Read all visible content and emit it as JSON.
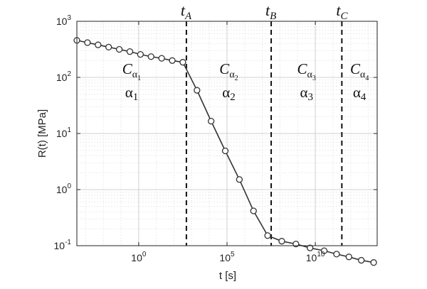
{
  "chart_data": {
    "type": "line",
    "xlabel": "t [s]",
    "ylabel": "R(t) [MPa]",
    "xscale": "log",
    "yscale": "log",
    "xlim_exp": [
      -3.5,
      13.5
    ],
    "ylim_exp": [
      -1,
      3
    ],
    "xticks": [
      {
        "exp": 0,
        "base": "10",
        "sup": "0"
      },
      {
        "exp": 5,
        "base": "10",
        "sup": "5"
      },
      {
        "exp": 10,
        "base": "10",
        "sup": "10"
      }
    ],
    "yticks": [
      {
        "exp": -1,
        "base": "10",
        "sup": "-1"
      },
      {
        "exp": 0,
        "base": "10",
        "sup": "0"
      },
      {
        "exp": 1,
        "base": "10",
        "sup": "1"
      },
      {
        "exp": 2,
        "base": "10",
        "sup": "2"
      },
      {
        "exp": 3,
        "base": "10",
        "sup": "3"
      }
    ],
    "grid": true,
    "series": [
      {
        "marker": "circle",
        "color": "#333333",
        "log10_t": [
          -3.5,
          -2.9,
          -2.3,
          -1.7,
          -1.1,
          -0.5,
          0.1,
          0.7,
          1.3,
          1.9,
          2.5,
          3.3,
          4.1,
          4.9,
          5.7,
          6.5,
          7.3,
          8.1,
          8.9,
          9.7,
          10.5,
          11.2,
          11.9,
          12.6,
          13.3
        ],
        "log10_R": [
          2.66,
          2.62,
          2.58,
          2.54,
          2.5,
          2.46,
          2.41,
          2.37,
          2.34,
          2.3,
          2.27,
          1.77,
          1.22,
          0.69,
          0.18,
          -0.38,
          -0.82,
          -0.92,
          -0.97,
          -1.04,
          -1.09,
          -1.15,
          -1.2,
          -1.26,
          -1.3
        ]
      }
    ],
    "vlines": [
      {
        "log10_t": 2.7,
        "label": "t",
        "sub": "A"
      },
      {
        "log10_t": 7.5,
        "label": "t",
        "sub": "B"
      },
      {
        "log10_t": 11.5,
        "label": "t",
        "sub": "C"
      }
    ],
    "annotations": [
      {
        "C": "C",
        "Csub": "α",
        "Csubsub": "1",
        "a": "α",
        "asub": "1"
      },
      {
        "C": "C",
        "Csub": "α",
        "Csubsub": "2",
        "a": "α",
        "asub": "2"
      },
      {
        "C": "C",
        "Csub": "α",
        "Csubsub": "3",
        "a": "α",
        "asub": "3"
      },
      {
        "C": "C",
        "Csub": "α",
        "Csubsub": "4",
        "a": "α",
        "asub": "4"
      }
    ]
  }
}
